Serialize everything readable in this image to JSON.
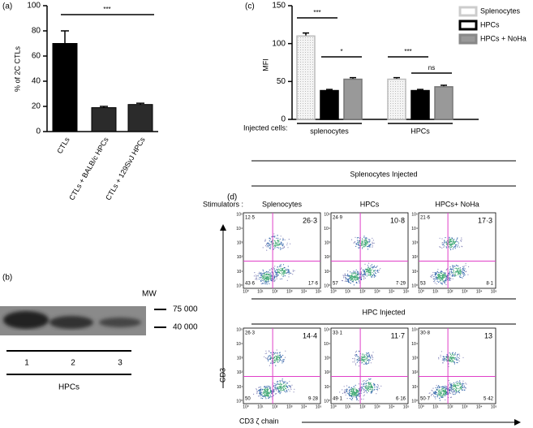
{
  "chart_data": [
    {
      "type": "bar",
      "label": "(a)",
      "y_label": "% of 2C CTLs",
      "categories": [
        "CTLs",
        "CTLs + BALB/c HPCs",
        "CTLs + 129SvJ HPCs"
      ],
      "values": [
        70,
        19,
        21.5
      ],
      "errors": [
        10,
        1,
        1
      ],
      "colors": [
        "#000000",
        "#2b2b2b",
        "#2b2b2b"
      ],
      "ylim": [
        0,
        100
      ],
      "yticks": [
        0,
        20,
        40,
        60,
        80,
        100
      ],
      "annotations": [
        "***"
      ]
    },
    {
      "type": "grouped_bar",
      "label": "(c)",
      "y_label": "MFI",
      "group_title": "Injected cells:",
      "categories": [
        "splenocytes",
        "HPCs"
      ],
      "series": [
        {
          "name": "Splenocytes",
          "color": "#e6e6e6",
          "values": [
            110,
            53
          ],
          "errors": [
            4,
            2
          ]
        },
        {
          "name": "HPCs",
          "color": "#000000",
          "values": [
            38,
            38
          ],
          "errors": [
            1.5,
            1.5
          ]
        },
        {
          "name": "HPCs + NoHa",
          "color": "#999999",
          "values": [
            53,
            43
          ],
          "errors": [
            2,
            2
          ]
        }
      ],
      "ylim": [
        0,
        150
      ],
      "yticks": [
        0,
        50,
        100,
        150
      ],
      "annotations": [
        "***",
        "*",
        "***",
        "ns"
      ]
    }
  ],
  "blot": {
    "label": "(b)",
    "mw_label": "MW",
    "markers": [
      "75 000",
      "40 000"
    ],
    "lanes": [
      "1",
      "2",
      "3"
    ],
    "sample": "HPCs"
  },
  "flow": {
    "label": "(d)",
    "stimulators_label": "Stimulators :",
    "stimulators": [
      "Splenocytes",
      "HPCs",
      "HPCs+ NoHa"
    ],
    "axis_ticks": [
      "10⁰",
      "10¹",
      "10²",
      "10³",
      "10⁴",
      "10⁵"
    ],
    "y_axis": "CD3",
    "x_axis": "CD3 ζ chain",
    "rows": [
      {
        "title": "Splenocytes Injected",
        "plots": [
          {
            "upper_left": "12·5",
            "upper_right": "26·3",
            "lower_left": "43·6",
            "lower_right": "17·6"
          },
          {
            "upper_left": "24·9",
            "upper_right": "10·8",
            "lower_left": "57",
            "lower_right": "7·29"
          },
          {
            "upper_left": "21·6",
            "upper_right": "17·3",
            "lower_left": "53",
            "lower_right": "8·1"
          }
        ]
      },
      {
        "title": "HPC Injected",
        "plots": [
          {
            "upper_left": "26·3",
            "upper_right": "14·4",
            "lower_left": "50",
            "lower_right": "9·28"
          },
          {
            "upper_left": "33·1",
            "upper_right": "11·7",
            "lower_left": "49·1",
            "lower_right": "6·16"
          },
          {
            "upper_left": "30·8",
            "upper_right": "13",
            "lower_left": "50·7",
            "lower_right": "5·42"
          }
        ]
      }
    ]
  }
}
